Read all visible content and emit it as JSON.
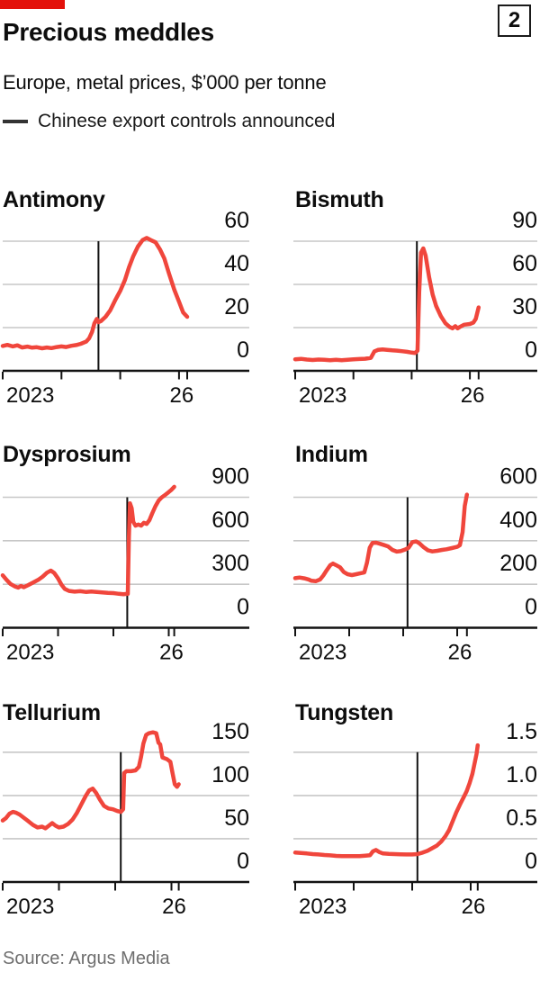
{
  "header": {
    "title": "Precious meddles",
    "subtitle": "Europe, metal prices, $’000 per tonne",
    "legend_label": "Chinese export controls announced",
    "figure_number": "2"
  },
  "footer": {
    "source": "Source: Argus Media"
  },
  "colors": {
    "brand_red": "#e3120b",
    "line_red": "#f0463c",
    "grid": "#c7c7c7",
    "axis": "#121212",
    "text": "#0d0d0d",
    "muted": "#6e6e6e"
  },
  "chart_data": [
    {
      "type": "line",
      "title": "Antimony",
      "ylabel": "$'000 per tonne",
      "y_ticks": [
        0,
        20,
        40,
        60
      ],
      "y_tick_labels": [
        "0",
        "20",
        "40",
        "60"
      ],
      "x_tick_labels": [
        "2023",
        "26"
      ],
      "x_tick_years": [
        2023,
        2024,
        2025,
        2026
      ],
      "event_year": 2024.63,
      "series": [
        [
          2023.0,
          11.5
        ],
        [
          2023.08,
          12
        ],
        [
          2023.17,
          11.3
        ],
        [
          2023.25,
          11.8
        ],
        [
          2023.33,
          10.8
        ],
        [
          2023.42,
          11.2
        ],
        [
          2023.5,
          10.7
        ],
        [
          2023.58,
          10.9
        ],
        [
          2023.67,
          10.4
        ],
        [
          2023.75,
          10.8
        ],
        [
          2023.83,
          10.5
        ],
        [
          2023.92,
          11
        ],
        [
          2024.0,
          11.3
        ],
        [
          2024.08,
          11
        ],
        [
          2024.17,
          11.6
        ],
        [
          2024.25,
          11.9
        ],
        [
          2024.33,
          12.5
        ],
        [
          2024.42,
          13.5
        ],
        [
          2024.47,
          15
        ],
        [
          2024.52,
          18
        ],
        [
          2024.56,
          22
        ],
        [
          2024.6,
          24
        ],
        [
          2024.63,
          22.5
        ],
        [
          2024.67,
          23
        ],
        [
          2024.75,
          25
        ],
        [
          2024.83,
          28
        ],
        [
          2024.92,
          33
        ],
        [
          2025.0,
          37
        ],
        [
          2025.08,
          42
        ],
        [
          2025.15,
          48
        ],
        [
          2025.22,
          53
        ],
        [
          2025.3,
          57.5
        ],
        [
          2025.38,
          60.5
        ],
        [
          2025.45,
          61.5
        ],
        [
          2025.52,
          60.5
        ],
        [
          2025.6,
          59.5
        ],
        [
          2025.68,
          56
        ],
        [
          2025.75,
          52
        ],
        [
          2025.83,
          45
        ],
        [
          2025.92,
          37.5
        ],
        [
          2026.0,
          32
        ],
        [
          2026.07,
          27
        ],
        [
          2026.14,
          25
        ]
      ]
    },
    {
      "type": "line",
      "title": "Bismuth",
      "ylabel": "$'000 per tonne",
      "y_ticks": [
        0,
        30,
        60,
        90
      ],
      "y_tick_labels": [
        "0",
        "30",
        "60",
        "90"
      ],
      "x_tick_labels": [
        "2023",
        "26"
      ],
      "x_tick_years": [
        2023,
        2024,
        2025,
        2026
      ],
      "event_year": 2025.09,
      "series": [
        [
          2023.0,
          8
        ],
        [
          2023.1,
          8.3
        ],
        [
          2023.2,
          7.8
        ],
        [
          2023.3,
          7.5
        ],
        [
          2023.4,
          7.8
        ],
        [
          2023.5,
          7.6
        ],
        [
          2023.6,
          7.4
        ],
        [
          2023.7,
          7.6
        ],
        [
          2023.8,
          7.4
        ],
        [
          2023.9,
          7.7
        ],
        [
          2024.0,
          8
        ],
        [
          2024.1,
          8.2
        ],
        [
          2024.2,
          8.4
        ],
        [
          2024.3,
          9
        ],
        [
          2024.36,
          13.5
        ],
        [
          2024.42,
          14.5
        ],
        [
          2024.5,
          14.8
        ],
        [
          2024.58,
          14.5
        ],
        [
          2024.67,
          14.2
        ],
        [
          2024.75,
          14
        ],
        [
          2024.83,
          13.6
        ],
        [
          2024.92,
          13.2
        ],
        [
          2025.0,
          12.6
        ],
        [
          2025.06,
          12.4
        ],
        [
          2025.1,
          14
        ],
        [
          2025.13,
          55
        ],
        [
          2025.16,
          82
        ],
        [
          2025.2,
          85
        ],
        [
          2025.24,
          80
        ],
        [
          2025.3,
          65
        ],
        [
          2025.36,
          53
        ],
        [
          2025.42,
          45
        ],
        [
          2025.5,
          38
        ],
        [
          2025.58,
          33
        ],
        [
          2025.65,
          30.5
        ],
        [
          2025.7,
          29.5
        ],
        [
          2025.75,
          31
        ],
        [
          2025.79,
          29.5
        ],
        [
          2025.83,
          30.5
        ],
        [
          2025.9,
          32
        ],
        [
          2026.0,
          32.5
        ],
        [
          2026.06,
          33.5
        ],
        [
          2026.1,
          36
        ],
        [
          2026.15,
          44
        ]
      ]
    },
    {
      "type": "line",
      "title": "Dysprosium",
      "ylabel": "$'000 per tonne",
      "y_ticks": [
        0,
        300,
        600,
        900
      ],
      "y_tick_labels": [
        "0",
        "300",
        "600",
        "900"
      ],
      "x_tick_labels": [
        "2023",
        "26"
      ],
      "x_tick_years": [
        2023,
        2024,
        2025,
        2026
      ],
      "event_year": 2025.25,
      "series": [
        [
          2023.0,
          362
        ],
        [
          2023.07,
          330
        ],
        [
          2023.14,
          302
        ],
        [
          2023.22,
          285
        ],
        [
          2023.28,
          277
        ],
        [
          2023.33,
          288
        ],
        [
          2023.38,
          279
        ],
        [
          2023.46,
          294
        ],
        [
          2023.55,
          312
        ],
        [
          2023.64,
          330
        ],
        [
          2023.72,
          352
        ],
        [
          2023.8,
          380
        ],
        [
          2023.87,
          394
        ],
        [
          2023.93,
          378
        ],
        [
          2024.0,
          340
        ],
        [
          2024.06,
          298
        ],
        [
          2024.12,
          268
        ],
        [
          2024.2,
          254
        ],
        [
          2024.3,
          249
        ],
        [
          2024.4,
          252
        ],
        [
          2024.5,
          247
        ],
        [
          2024.6,
          250
        ],
        [
          2024.7,
          247
        ],
        [
          2024.8,
          244
        ],
        [
          2024.9,
          241
        ],
        [
          2025.0,
          239
        ],
        [
          2025.1,
          234
        ],
        [
          2025.18,
          231
        ],
        [
          2025.26,
          234
        ],
        [
          2025.28,
          620
        ],
        [
          2025.3,
          858
        ],
        [
          2025.33,
          825
        ],
        [
          2025.36,
          730
        ],
        [
          2025.4,
          704
        ],
        [
          2025.45,
          712
        ],
        [
          2025.5,
          704
        ],
        [
          2025.55,
          724
        ],
        [
          2025.6,
          716
        ],
        [
          2025.65,
          742
        ],
        [
          2025.7,
          788
        ],
        [
          2025.76,
          838
        ],
        [
          2025.82,
          878
        ],
        [
          2025.87,
          898
        ],
        [
          2025.92,
          912
        ],
        [
          2026.0,
          936
        ],
        [
          2026.05,
          952
        ],
        [
          2026.1,
          972
        ]
      ]
    },
    {
      "type": "line",
      "title": "Indium",
      "ylabel": "$'000 per tonne",
      "y_ticks": [
        0,
        200,
        400,
        600
      ],
      "y_tick_labels": [
        "0",
        "200",
        "400",
        "600"
      ],
      "x_tick_labels": [
        "2023",
        "26"
      ],
      "x_tick_years": [
        2023,
        2024,
        2025,
        2026
      ],
      "event_year": 2025.08,
      "series": [
        [
          2023.0,
          228
        ],
        [
          2023.08,
          231
        ],
        [
          2023.17,
          227
        ],
        [
          2023.25,
          222
        ],
        [
          2023.3,
          216
        ],
        [
          2023.38,
          214
        ],
        [
          2023.46,
          222
        ],
        [
          2023.52,
          240
        ],
        [
          2023.58,
          263
        ],
        [
          2023.65,
          288
        ],
        [
          2023.7,
          295
        ],
        [
          2023.75,
          289
        ],
        [
          2023.83,
          278
        ],
        [
          2023.9,
          256
        ],
        [
          2023.97,
          246
        ],
        [
          2024.05,
          242
        ],
        [
          2024.13,
          246
        ],
        [
          2024.2,
          250
        ],
        [
          2024.28,
          254
        ],
        [
          2024.33,
          300
        ],
        [
          2024.38,
          368
        ],
        [
          2024.43,
          390
        ],
        [
          2024.5,
          391
        ],
        [
          2024.57,
          386
        ],
        [
          2024.65,
          380
        ],
        [
          2024.72,
          374
        ],
        [
          2024.8,
          358
        ],
        [
          2024.88,
          350
        ],
        [
          2024.95,
          352
        ],
        [
          2025.04,
          360
        ],
        [
          2025.1,
          368
        ],
        [
          2025.17,
          394
        ],
        [
          2025.24,
          397
        ],
        [
          2025.3,
          388
        ],
        [
          2025.38,
          370
        ],
        [
          2025.46,
          356
        ],
        [
          2025.54,
          351
        ],
        [
          2025.63,
          354
        ],
        [
          2025.72,
          358
        ],
        [
          2025.8,
          361
        ],
        [
          2025.9,
          366
        ],
        [
          2026.0,
          372
        ],
        [
          2026.05,
          380
        ],
        [
          2026.1,
          440
        ],
        [
          2026.14,
          560
        ],
        [
          2026.18,
          612
        ]
      ]
    },
    {
      "type": "line",
      "title": "Tellurium",
      "ylabel": "$'000 per tonne",
      "y_ticks": [
        0,
        50,
        100,
        150
      ],
      "y_tick_labels": [
        "0",
        "50",
        "100",
        "150"
      ],
      "x_tick_labels": [
        "2023",
        "26"
      ],
      "x_tick_years": [
        2023,
        2024,
        2025,
        2026
      ],
      "event_year": 2025.1,
      "series": [
        [
          2023.0,
          71
        ],
        [
          2023.06,
          74
        ],
        [
          2023.12,
          79
        ],
        [
          2023.18,
          81
        ],
        [
          2023.24,
          80
        ],
        [
          2023.3,
          78
        ],
        [
          2023.38,
          74
        ],
        [
          2023.46,
          70
        ],
        [
          2023.54,
          66
        ],
        [
          2023.62,
          63
        ],
        [
          2023.7,
          64
        ],
        [
          2023.76,
          62
        ],
        [
          2023.82,
          65
        ],
        [
          2023.88,
          68
        ],
        [
          2023.94,
          65
        ],
        [
          2024.0,
          63
        ],
        [
          2024.08,
          64
        ],
        [
          2024.16,
          67
        ],
        [
          2024.24,
          72
        ],
        [
          2024.32,
          80
        ],
        [
          2024.4,
          90
        ],
        [
          2024.48,
          100
        ],
        [
          2024.54,
          106
        ],
        [
          2024.6,
          108
        ],
        [
          2024.66,
          103
        ],
        [
          2024.73,
          95
        ],
        [
          2024.8,
          88
        ],
        [
          2024.88,
          85
        ],
        [
          2024.96,
          84
        ],
        [
          2025.04,
          82
        ],
        [
          2025.1,
          81
        ],
        [
          2025.14,
          84
        ],
        [
          2025.16,
          126
        ],
        [
          2025.2,
          128
        ],
        [
          2025.28,
          128
        ],
        [
          2025.36,
          129
        ],
        [
          2025.42,
          133
        ],
        [
          2025.46,
          145
        ],
        [
          2025.5,
          160
        ],
        [
          2025.55,
          170
        ],
        [
          2025.6,
          172
        ],
        [
          2025.67,
          173
        ],
        [
          2025.73,
          172
        ],
        [
          2025.77,
          161
        ],
        [
          2025.8,
          159
        ],
        [
          2025.84,
          144
        ],
        [
          2025.92,
          142
        ],
        [
          2025.98,
          139
        ],
        [
          2026.02,
          126
        ],
        [
          2026.06,
          113
        ],
        [
          2026.1,
          110
        ],
        [
          2026.13,
          113
        ]
      ]
    },
    {
      "type": "line",
      "title": "Tungsten",
      "ylabel": "$'000 per tonne",
      "y_ticks": [
        0,
        0.5,
        1.0,
        1.5
      ],
      "y_tick_labels": [
        "0",
        "0.5",
        "1.0",
        "1.5"
      ],
      "x_tick_labels": [
        "2023",
        "26"
      ],
      "x_tick_years": [
        2023,
        2024,
        2025,
        2026
      ],
      "event_year": 2025.09,
      "series": [
        [
          2023.0,
          0.34
        ],
        [
          2023.1,
          0.335
        ],
        [
          2023.2,
          0.33
        ],
        [
          2023.3,
          0.322
        ],
        [
          2023.4,
          0.318
        ],
        [
          2023.5,
          0.312
        ],
        [
          2023.6,
          0.308
        ],
        [
          2023.7,
          0.302
        ],
        [
          2023.8,
          0.3
        ],
        [
          2023.9,
          0.3
        ],
        [
          2024.0,
          0.3
        ],
        [
          2024.1,
          0.3
        ],
        [
          2024.2,
          0.305
        ],
        [
          2024.28,
          0.31
        ],
        [
          2024.33,
          0.355
        ],
        [
          2024.38,
          0.37
        ],
        [
          2024.44,
          0.345
        ],
        [
          2024.5,
          0.33
        ],
        [
          2024.6,
          0.325
        ],
        [
          2024.7,
          0.322
        ],
        [
          2024.8,
          0.32
        ],
        [
          2024.9,
          0.318
        ],
        [
          2025.0,
          0.318
        ],
        [
          2025.09,
          0.322
        ],
        [
          2025.18,
          0.34
        ],
        [
          2025.26,
          0.36
        ],
        [
          2025.34,
          0.39
        ],
        [
          2025.42,
          0.42
        ],
        [
          2025.5,
          0.47
        ],
        [
          2025.57,
          0.53
        ],
        [
          2025.63,
          0.6
        ],
        [
          2025.69,
          0.7
        ],
        [
          2025.75,
          0.8
        ],
        [
          2025.82,
          0.9
        ],
        [
          2025.88,
          0.98
        ],
        [
          2025.93,
          1.05
        ],
        [
          2025.98,
          1.14
        ],
        [
          2026.03,
          1.25
        ],
        [
          2026.07,
          1.38
        ],
        [
          2026.1,
          1.48
        ],
        [
          2026.12,
          1.58
        ]
      ]
    }
  ]
}
